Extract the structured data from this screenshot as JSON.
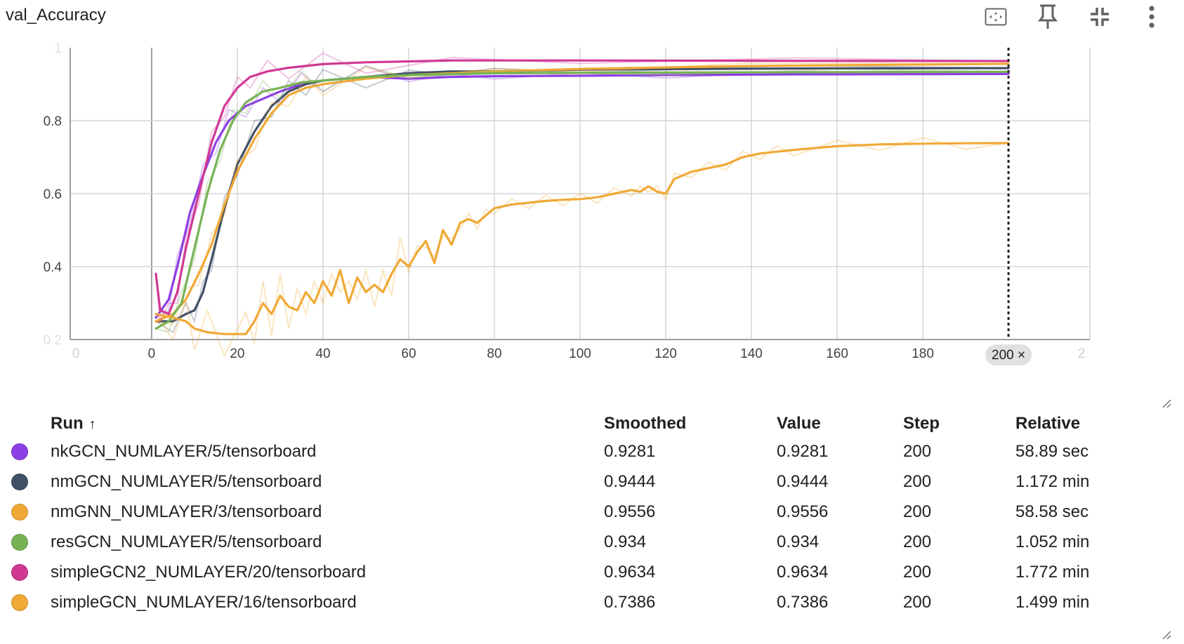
{
  "card": {
    "title": "val_Accuracy",
    "tools": [
      {
        "name": "fit-to-domain-icon"
      },
      {
        "name": "pin-icon"
      },
      {
        "name": "collapse-icon"
      },
      {
        "name": "more-vert-icon"
      }
    ]
  },
  "chart_data": {
    "type": "line",
    "title": "val_Accuracy",
    "xlabel": "",
    "ylabel": "",
    "xlim": [
      -19,
      219
    ],
    "ylim": [
      0.2,
      1.0
    ],
    "xticks": [
      "0",
      "0",
      "20",
      "40",
      "60",
      "80",
      "100",
      "120",
      "140",
      "160",
      "180",
      "200",
      "2"
    ],
    "yticks": [
      "0.2",
      "0.4",
      "0.6",
      "0.8",
      "1"
    ],
    "grid": true,
    "step_marker": {
      "step": 200,
      "label": "200 ×"
    },
    "series": [
      {
        "name": "nkGCN_NUMLAYER/5/tensorboard",
        "color": "#8e3ee5",
        "points": [
          [
            1,
            0.26
          ],
          [
            4,
            0.31
          ],
          [
            6,
            0.4
          ],
          [
            9,
            0.55
          ],
          [
            12,
            0.65
          ],
          [
            15,
            0.74
          ],
          [
            18,
            0.8
          ],
          [
            22,
            0.84
          ],
          [
            26,
            0.86
          ],
          [
            30,
            0.88
          ],
          [
            35,
            0.9
          ],
          [
            40,
            0.91
          ],
          [
            50,
            0.92
          ],
          [
            60,
            0.915
          ],
          [
            70,
            0.92
          ],
          [
            80,
            0.922
          ],
          [
            100,
            0.923
          ],
          [
            120,
            0.925
          ],
          [
            150,
            0.927
          ],
          [
            200,
            0.928
          ]
        ]
      },
      {
        "name": "nmGCN_NUMLAYER/5/tensorboard",
        "color": "#425066",
        "points": [
          [
            1,
            0.25
          ],
          [
            5,
            0.25
          ],
          [
            8,
            0.27
          ],
          [
            10,
            0.28
          ],
          [
            12,
            0.33
          ],
          [
            14,
            0.42
          ],
          [
            17,
            0.56
          ],
          [
            20,
            0.68
          ],
          [
            24,
            0.77
          ],
          [
            28,
            0.84
          ],
          [
            32,
            0.88
          ],
          [
            36,
            0.9
          ],
          [
            40,
            0.91
          ],
          [
            50,
            0.92
          ],
          [
            60,
            0.93
          ],
          [
            70,
            0.935
          ],
          [
            80,
            0.935
          ],
          [
            100,
            0.94
          ],
          [
            150,
            0.943
          ],
          [
            200,
            0.944
          ]
        ]
      },
      {
        "name": "nmGNN_NUMLAYER/3/tensorboard",
        "color": "#f0a936",
        "points": [
          [
            1,
            0.25
          ],
          [
            5,
            0.27
          ],
          [
            8,
            0.31
          ],
          [
            11,
            0.38
          ],
          [
            14,
            0.46
          ],
          [
            17,
            0.57
          ],
          [
            20,
            0.66
          ],
          [
            24,
            0.75
          ],
          [
            28,
            0.82
          ],
          [
            32,
            0.87
          ],
          [
            36,
            0.89
          ],
          [
            40,
            0.9
          ],
          [
            50,
            0.915
          ],
          [
            60,
            0.925
          ],
          [
            80,
            0.935
          ],
          [
            100,
            0.942
          ],
          [
            140,
            0.95
          ],
          [
            200,
            0.956
          ]
        ]
      },
      {
        "name": "resGCN_NUMLAYER/5/tensorboard",
        "color": "#77b255",
        "points": [
          [
            1,
            0.23
          ],
          [
            4,
            0.25
          ],
          [
            7,
            0.3
          ],
          [
            10,
            0.45
          ],
          [
            13,
            0.6
          ],
          [
            16,
            0.72
          ],
          [
            19,
            0.8
          ],
          [
            22,
            0.85
          ],
          [
            26,
            0.88
          ],
          [
            30,
            0.89
          ],
          [
            35,
            0.905
          ],
          [
            40,
            0.91
          ],
          [
            50,
            0.92
          ],
          [
            60,
            0.925
          ],
          [
            80,
            0.93
          ],
          [
            120,
            0.932
          ],
          [
            160,
            0.933
          ],
          [
            200,
            0.934
          ]
        ]
      },
      {
        "name": "simpleGCN2_NUMLAYER/20/tensorboard",
        "color": "#d03894",
        "points": [
          [
            1,
            0.38
          ],
          [
            2,
            0.28
          ],
          [
            4,
            0.27
          ],
          [
            6,
            0.33
          ],
          [
            8,
            0.45
          ],
          [
            11,
            0.6
          ],
          [
            14,
            0.74
          ],
          [
            17,
            0.84
          ],
          [
            20,
            0.89
          ],
          [
            23,
            0.92
          ],
          [
            27,
            0.935
          ],
          [
            32,
            0.945
          ],
          [
            40,
            0.955
          ],
          [
            50,
            0.96
          ],
          [
            70,
            0.965
          ],
          [
            100,
            0.965
          ],
          [
            150,
            0.964
          ],
          [
            200,
            0.9634
          ]
        ]
      },
      {
        "name": "simpleGCN_NUMLAYER/16/tensorboard",
        "color": "#f0a936",
        "points": [
          [
            1,
            0.27
          ],
          [
            5,
            0.26
          ],
          [
            8,
            0.25
          ],
          [
            10,
            0.23
          ],
          [
            13,
            0.22
          ],
          [
            17,
            0.215
          ],
          [
            22,
            0.215
          ],
          [
            24,
            0.25
          ],
          [
            26,
            0.3
          ],
          [
            28,
            0.27
          ],
          [
            30,
            0.32
          ],
          [
            32,
            0.29
          ],
          [
            34,
            0.28
          ],
          [
            36,
            0.33
          ],
          [
            38,
            0.3
          ],
          [
            40,
            0.36
          ],
          [
            42,
            0.32
          ],
          [
            44,
            0.39
          ],
          [
            46,
            0.3
          ],
          [
            48,
            0.37
          ],
          [
            50,
            0.33
          ],
          [
            52,
            0.35
          ],
          [
            54,
            0.33
          ],
          [
            56,
            0.38
          ],
          [
            58,
            0.42
          ],
          [
            60,
            0.4
          ],
          [
            62,
            0.44
          ],
          [
            64,
            0.47
          ],
          [
            66,
            0.41
          ],
          [
            68,
            0.5
          ],
          [
            70,
            0.46
          ],
          [
            72,
            0.52
          ],
          [
            74,
            0.53
          ],
          [
            76,
            0.52
          ],
          [
            78,
            0.54
          ],
          [
            80,
            0.56
          ],
          [
            84,
            0.57
          ],
          [
            88,
            0.575
          ],
          [
            92,
            0.58
          ],
          [
            96,
            0.583
          ],
          [
            100,
            0.585
          ],
          [
            104,
            0.59
          ],
          [
            108,
            0.6
          ],
          [
            112,
            0.61
          ],
          [
            114,
            0.605
          ],
          [
            116,
            0.62
          ],
          [
            118,
            0.605
          ],
          [
            120,
            0.6
          ],
          [
            122,
            0.64
          ],
          [
            126,
            0.66
          ],
          [
            130,
            0.67
          ],
          [
            134,
            0.68
          ],
          [
            138,
            0.7
          ],
          [
            142,
            0.71
          ],
          [
            146,
            0.715
          ],
          [
            150,
            0.72
          ],
          [
            160,
            0.73
          ],
          [
            170,
            0.735
          ],
          [
            180,
            0.737
          ],
          [
            190,
            0.738
          ],
          [
            200,
            0.7386
          ]
        ]
      }
    ]
  },
  "table": {
    "headers": {
      "run": "Run",
      "sort": "↑",
      "smoothed": "Smoothed",
      "value": "Value",
      "step": "Step",
      "relative": "Relative"
    },
    "rows": [
      {
        "color": "#8e3ee5",
        "run": "nkGCN_NUMLAYER/5/tensorboard",
        "smoothed": "0.9281",
        "value": "0.9281",
        "step": "200",
        "relative": "58.89 sec"
      },
      {
        "color": "#425066",
        "run": "nmGCN_NUMLAYER/5/tensorboard",
        "smoothed": "0.9444",
        "value": "0.9444",
        "step": "200",
        "relative": "1.172 min"
      },
      {
        "color": "#f0a936",
        "run": "nmGNN_NUMLAYER/3/tensorboard",
        "smoothed": "0.9556",
        "value": "0.9556",
        "step": "200",
        "relative": "58.58 sec"
      },
      {
        "color": "#77b255",
        "run": "resGCN_NUMLAYER/5/tensorboard",
        "smoothed": "0.934",
        "value": "0.934",
        "step": "200",
        "relative": "1.052 min"
      },
      {
        "color": "#d03894",
        "run": "simpleGCN2_NUMLAYER/20/tensorboard",
        "smoothed": "0.9634",
        "value": "0.9634",
        "step": "200",
        "relative": "1.772 min"
      },
      {
        "color": "#f0a936",
        "run": "simpleGCN_NUMLAYER/16/tensorboard",
        "smoothed": "0.7386",
        "value": "0.7386",
        "step": "200",
        "relative": "1.499 min"
      }
    ]
  }
}
